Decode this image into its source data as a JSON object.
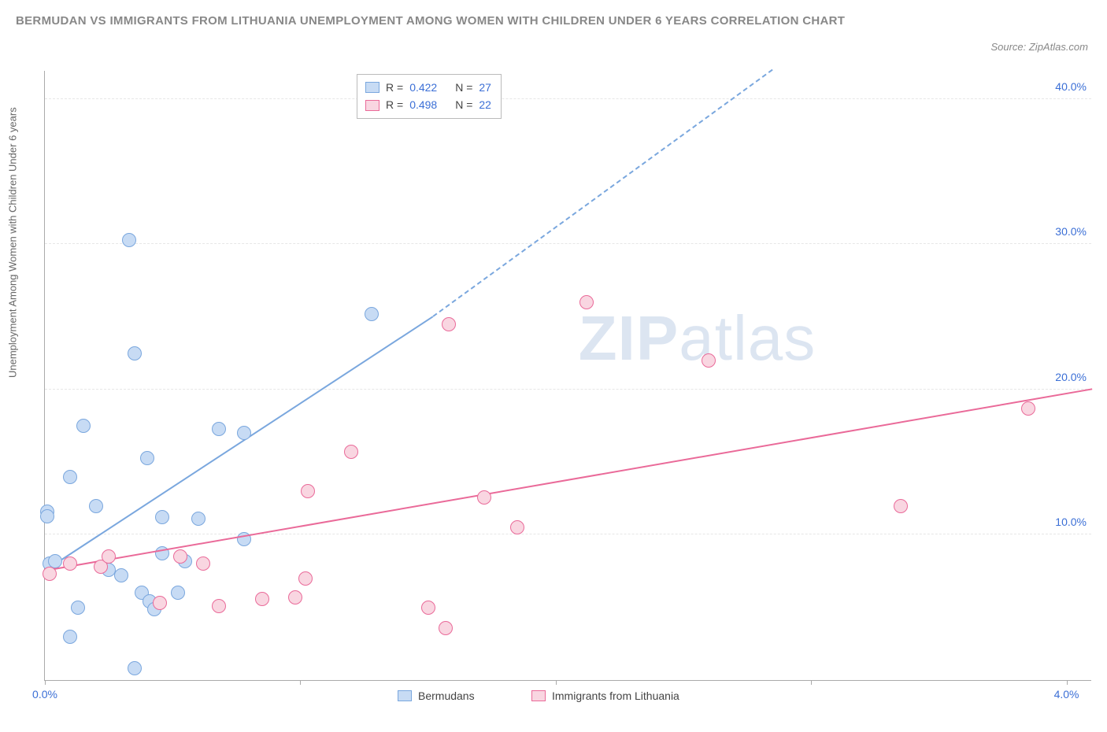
{
  "title": "BERMUDAN VS IMMIGRANTS FROM LITHUANIA UNEMPLOYMENT AMONG WOMEN WITH CHILDREN UNDER 6 YEARS CORRELATION CHART",
  "source_prefix": "Source: ",
  "source_name": "ZipAtlas.com",
  "ylabel": "Unemployment Among Women with Children Under 6 years",
  "watermark_bold": "ZIP",
  "watermark_rest": "atlas",
  "chart": {
    "type": "scatter",
    "xlim": [
      0.0,
      4.1
    ],
    "ylim": [
      0.0,
      42.0
    ],
    "xticks": [
      0.0,
      1.0,
      2.0,
      3.0,
      4.0
    ],
    "xtick_labels": [
      "0.0%",
      "",
      "",
      "",
      "4.0%"
    ],
    "yticks": [
      10.0,
      20.0,
      30.0,
      40.0
    ],
    "ytick_labels": [
      "10.0%",
      "20.0%",
      "30.0%",
      "40.0%"
    ],
    "grid_color": "#e6e6e6",
    "axis_color": "#aaaaaa",
    "background_color": "#ffffff",
    "tick_label_color": "#3b6fd6",
    "series": [
      {
        "name": "Bermudans",
        "color_fill": "#c7dbf4",
        "color_stroke": "#7aa7de",
        "R": "0.422",
        "N": "27",
        "trend": {
          "x1": 0.0,
          "y1": 7.5,
          "x2": 1.52,
          "y2": 25.0,
          "x2_dash": 2.85,
          "y2_dash": 42.0
        },
        "points": [
          [
            0.01,
            11.6
          ],
          [
            0.01,
            11.3
          ],
          [
            0.02,
            8.0
          ],
          [
            0.04,
            8.2
          ],
          [
            0.1,
            3.0
          ],
          [
            0.1,
            14.0
          ],
          [
            0.13,
            5.0
          ],
          [
            0.15,
            17.5
          ],
          [
            0.2,
            12.0
          ],
          [
            0.25,
            7.6
          ],
          [
            0.3,
            7.2
          ],
          [
            0.33,
            30.3
          ],
          [
            0.35,
            22.5
          ],
          [
            0.35,
            0.8
          ],
          [
            0.38,
            6.0
          ],
          [
            0.4,
            15.3
          ],
          [
            0.41,
            5.4
          ],
          [
            0.43,
            4.9
          ],
          [
            0.46,
            8.7
          ],
          [
            0.46,
            11.2
          ],
          [
            0.52,
            6.0
          ],
          [
            0.55,
            8.2
          ],
          [
            0.6,
            11.1
          ],
          [
            0.68,
            17.3
          ],
          [
            0.78,
            9.7
          ],
          [
            0.78,
            17.0
          ],
          [
            1.28,
            25.2
          ]
        ]
      },
      {
        "name": "Immigrants from Lithuania",
        "color_fill": "#f9d6e1",
        "color_stroke": "#ea6a99",
        "R": "0.498",
        "N": "22",
        "trend": {
          "x1": 0.0,
          "y1": 7.5,
          "x2": 4.1,
          "y2": 20.0
        },
        "points": [
          [
            0.02,
            7.3
          ],
          [
            0.1,
            8.0
          ],
          [
            0.22,
            7.8
          ],
          [
            0.25,
            8.5
          ],
          [
            0.45,
            5.3
          ],
          [
            0.53,
            8.5
          ],
          [
            0.62,
            8.0
          ],
          [
            0.68,
            5.1
          ],
          [
            0.85,
            5.6
          ],
          [
            0.98,
            5.7
          ],
          [
            1.02,
            7.0
          ],
          [
            1.03,
            13.0
          ],
          [
            1.2,
            15.7
          ],
          [
            1.5,
            5.0
          ],
          [
            1.58,
            24.5
          ],
          [
            1.57,
            3.6
          ],
          [
            1.72,
            12.6
          ],
          [
            1.85,
            10.5
          ],
          [
            2.12,
            26.0
          ],
          [
            2.6,
            22.0
          ],
          [
            3.35,
            12.0
          ],
          [
            3.85,
            18.7
          ]
        ]
      }
    ],
    "stats_labels": {
      "R": "R =",
      "N": "N ="
    },
    "stats_value_color": "#3b6fd6"
  }
}
